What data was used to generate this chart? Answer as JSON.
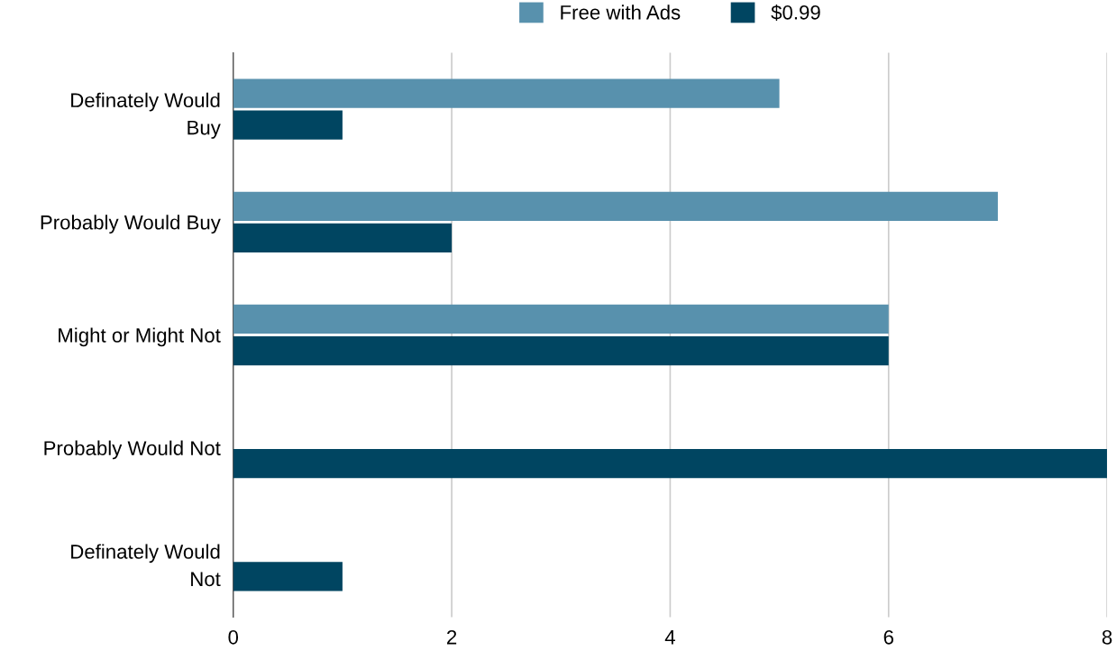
{
  "chart_data": {
    "type": "bar",
    "orientation": "horizontal",
    "categories": [
      "Definately Would Buy",
      "Probably Would Buy",
      "Might or Might Not",
      "Probably Would Not",
      "Definately Would Not"
    ],
    "series": [
      {
        "name": "Free with Ads",
        "color": "#5891ad",
        "values": [
          5,
          7,
          6,
          0,
          0
        ]
      },
      {
        "name": "$0.99",
        "color": "#004561",
        "values": [
          1,
          2,
          6,
          8,
          1
        ]
      }
    ],
    "xlim": [
      0,
      8
    ],
    "xticks": [
      0,
      2,
      4,
      6,
      8
    ],
    "grid": "x",
    "legend": "top"
  }
}
